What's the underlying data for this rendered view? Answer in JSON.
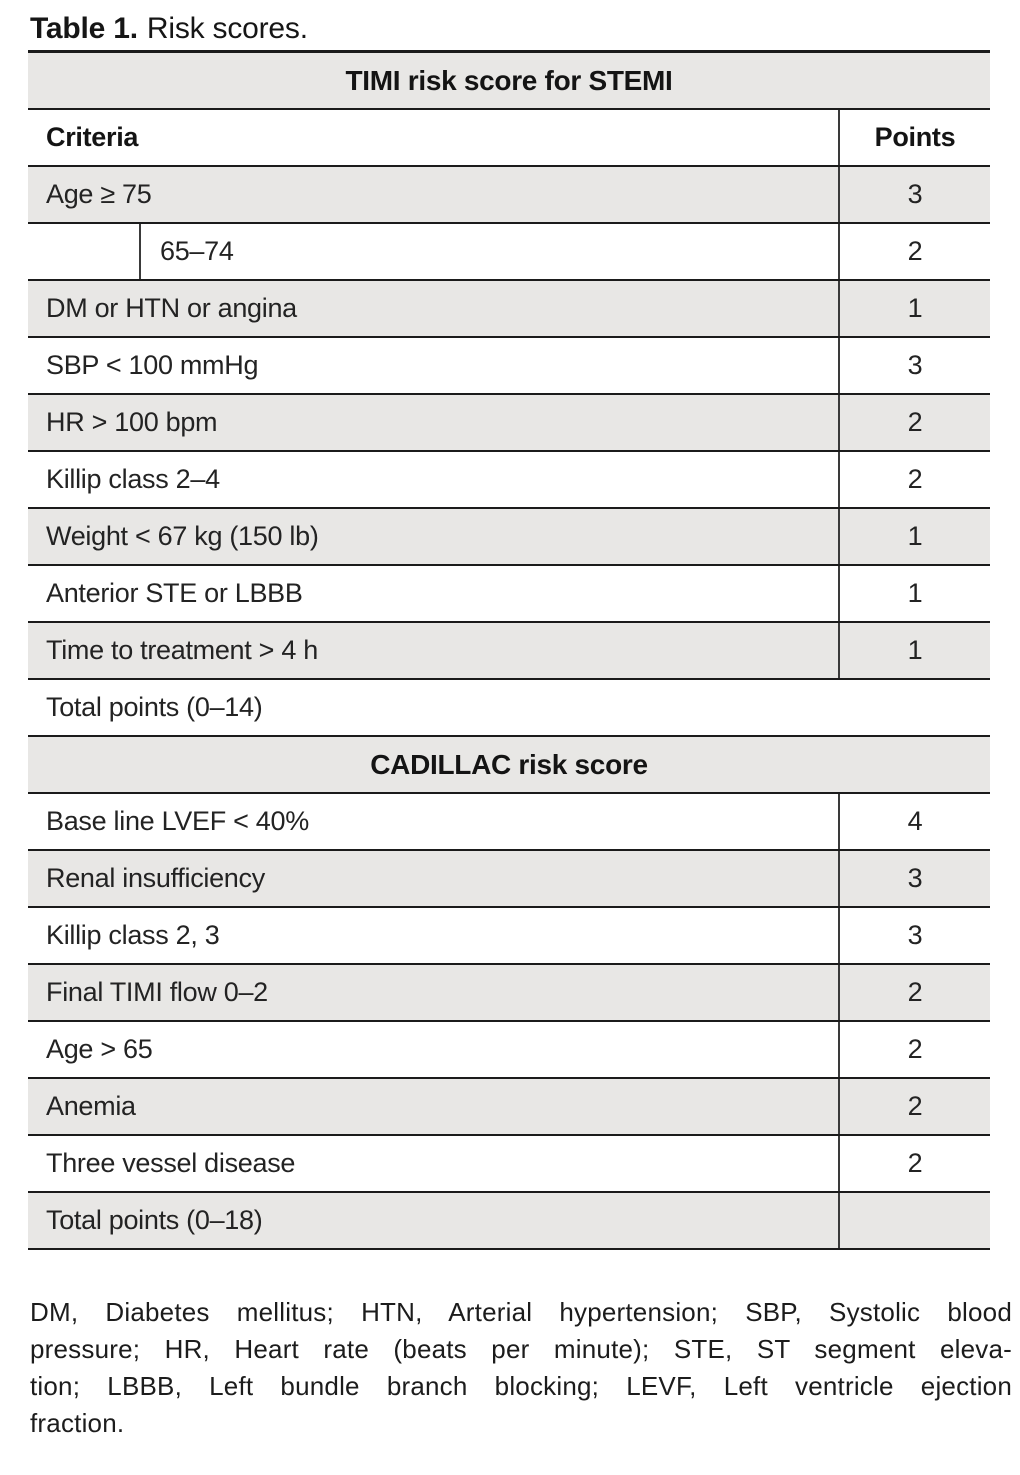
{
  "title": {
    "bold": "Table 1.",
    "text": "Risk scores."
  },
  "table": {
    "sections": [
      {
        "header": "TIMI risk score for STEMI",
        "columns": {
          "criteria": "Criteria",
          "points": "Points"
        },
        "rows": [
          {
            "criteria": "Age ≥ 75",
            "points": "3"
          },
          {
            "criteria": "65–74",
            "points": "2"
          },
          {
            "criteria": "DM or HTN or angina",
            "points": "1"
          },
          {
            "criteria": "SBP < 100 mmHg",
            "points": "3"
          },
          {
            "criteria": "HR > 100 bpm",
            "points": "2"
          },
          {
            "criteria": "Killip class 2–4",
            "points": "2"
          },
          {
            "criteria": "Weight < 67 kg (150 lb)",
            "points": "1"
          },
          {
            "criteria": "Anterior STE or LBBB",
            "points": "1"
          },
          {
            "criteria": "Time to treatment > 4 h",
            "points": "1"
          },
          {
            "criteria": "Total points (0–14)",
            "points": ""
          }
        ]
      },
      {
        "header": "CADILLAC risk score",
        "rows": [
          {
            "criteria": "Base line LVEF < 40%",
            "points": "4"
          },
          {
            "criteria": "Renal insufficiency",
            "points": "3"
          },
          {
            "criteria": "Killip class 2, 3",
            "points": "3"
          },
          {
            "criteria": "Final TIMI flow 0–2",
            "points": "2"
          },
          {
            "criteria": "Age > 65",
            "points": "2"
          },
          {
            "criteria": "Anemia",
            "points": "2"
          },
          {
            "criteria": "Three vessel disease",
            "points": "2"
          },
          {
            "criteria": "Total points (0–18)",
            "points": ""
          }
        ]
      }
    ]
  },
  "footnote": {
    "lines": [
      "DM, Diabetes mellitus; HTN, Arterial hypertension; SBP, Systolic blood",
      "pressure; HR, Heart rate (beats per minute); STE, ST segment eleva-",
      "tion; LBBB, Left bundle branch blocking; LEVF, Left ventricle ejection",
      "fraction."
    ]
  },
  "colors": {
    "row_shade": "#e8e7e5",
    "rule": "#1b1b1b",
    "background": "#ffffff"
  }
}
